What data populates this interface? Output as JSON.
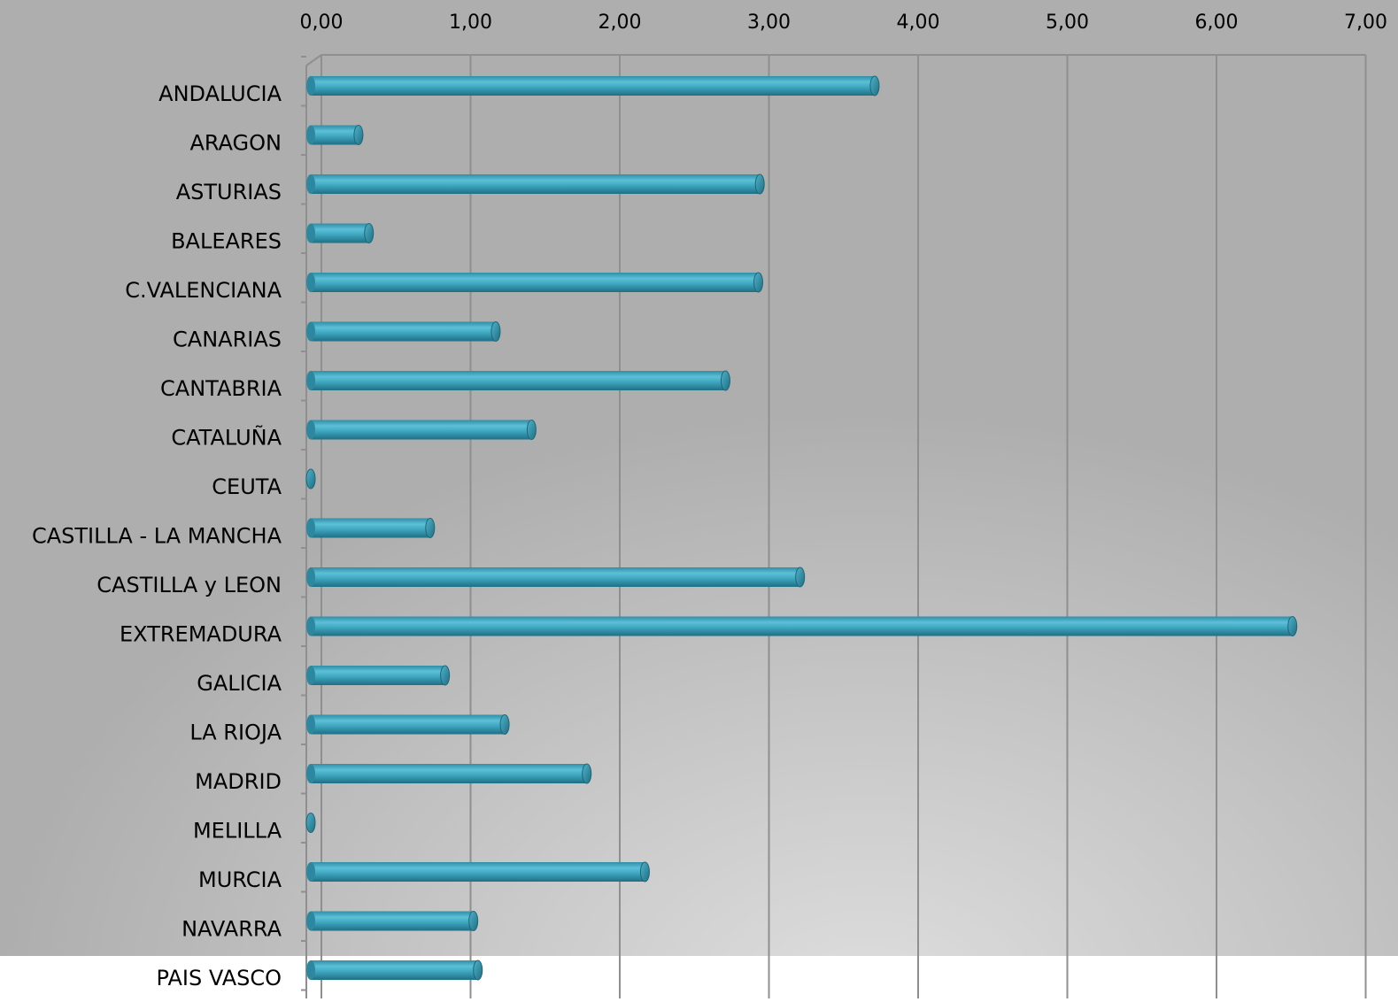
{
  "chart_data": {
    "type": "bar",
    "orientation": "horizontal",
    "categories": [
      "ANDALUCIA",
      "ARAGON",
      "ASTURIAS",
      "BALEARES",
      "C.VALENCIANA",
      "CANARIAS",
      "CANTABRIA",
      "CATALUÑA",
      "CEUTA",
      "CASTILLA - LA MANCHA",
      "CASTILLA y LEON",
      "EXTREMADURA",
      "GALICIA",
      "LA RIOJA",
      "MADRID",
      "MELILLA",
      "MURCIA",
      "NAVARRA",
      "PAIS VASCO"
    ],
    "values": [
      3.78,
      0.32,
      3.01,
      0.39,
      3.0,
      1.24,
      2.78,
      1.48,
      0.0,
      0.8,
      3.28,
      6.58,
      0.9,
      1.3,
      1.85,
      0.0,
      2.24,
      1.09,
      1.12
    ],
    "xticks": [
      "0,00",
      "1,00",
      "2,00",
      "3,00",
      "4,00",
      "5,00",
      "6,00",
      "7,00"
    ],
    "xlim": [
      0,
      7
    ],
    "x_axis_position": "top",
    "grid": true,
    "bar_color": "#3aa3bc"
  }
}
